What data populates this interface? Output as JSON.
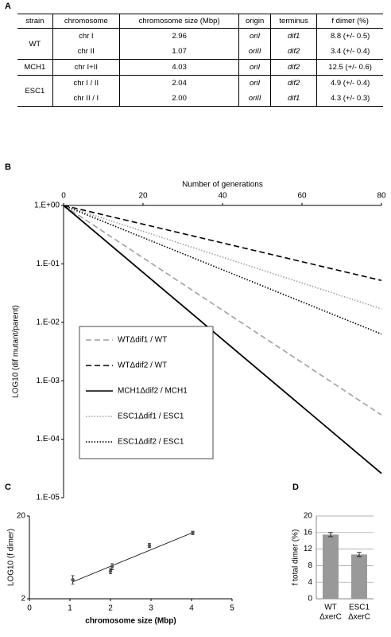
{
  "panels": [
    "A",
    "B",
    "C",
    "D"
  ],
  "table": {
    "header": [
      "strain",
      "chromosome",
      "chromosome size (Mbp)",
      "origin",
      "terminus",
      "f dimer (%)"
    ],
    "groups": [
      {
        "strain": "WT",
        "rows": [
          [
            "chr I",
            "2.96",
            "oriI",
            "dif1",
            "8.8 (+/- 0.5)"
          ],
          [
            "chr II",
            "1.07",
            "oriII",
            "dif2",
            "3.4 (+/- 0.4)"
          ]
        ]
      },
      {
        "strain": "MCH1",
        "rows": [
          [
            "chr I+II",
            "4.03",
            "oriI",
            "dif2",
            "12.5 (+/- 0.6)"
          ]
        ]
      },
      {
        "strain": "ESC1",
        "rows": [
          [
            "chr I / II",
            "2.04",
            "oriI",
            "dif2",
            "4.9 (+/- 0.4)"
          ],
          [
            "chr II / I",
            "2.00",
            "oriII",
            "dif1",
            "4.3 (+/- 0.3)"
          ]
        ]
      }
    ]
  },
  "chart_data": [
    {
      "type": "line",
      "xlabel": "Number of generations",
      "ylabel": "LOG10 (dif mutant/parent)",
      "x": [
        0,
        80
      ],
      "xlim": [
        0,
        80
      ],
      "xticks": [
        0,
        20,
        40,
        60,
        80
      ],
      "log_y": true,
      "ylim": [
        1e-05,
        1
      ],
      "yticks": [
        {
          "value": 1,
          "label": "1,E+00"
        },
        {
          "value": 0.1,
          "label": "1.E-01"
        },
        {
          "value": 0.01,
          "label": "1.E-02"
        },
        {
          "value": 0.001,
          "label": "1.E-03"
        },
        {
          "value": 0.0001,
          "label": "1.E-04"
        },
        {
          "value": 1e-05,
          "label": "1.E-05"
        }
      ],
      "legend": "lower left",
      "series": [
        {
          "name": "WTΔdif1 / WT",
          "color": "#a0a0a0",
          "dash": "dashed",
          "values": [
            1,
            0.00026
          ]
        },
        {
          "name": "WTΔdif2 / WT",
          "color": "#000000",
          "dash": "dashed",
          "values": [
            1,
            0.052
          ]
        },
        {
          "name": "MCH1Δdif2 / MCH1",
          "color": "#000000",
          "dash": "solid",
          "values": [
            1,
            2.6e-05
          ]
        },
        {
          "name": "ESC1Δdif1 / ESC1",
          "color": "#a0a0a0",
          "dash": "dotted",
          "values": [
            1,
            0.017
          ]
        },
        {
          "name": "ESC1Δdif2 / ESC1",
          "color": "#000000",
          "dash": "dotted",
          "values": [
            1,
            0.0063
          ]
        }
      ]
    },
    {
      "type": "scatter",
      "xlabel": "chromosome size (Mbp)",
      "ylabel": "LOG10 (f dimer)",
      "x": [
        1.07,
        2.0,
        2.04,
        2.96,
        4.03
      ],
      "values": [
        3.4,
        4.3,
        4.9,
        8.8,
        12.5
      ],
      "errors": [
        0.4,
        0.3,
        0.4,
        0.5,
        0.6
      ],
      "xlim": [
        0,
        5
      ],
      "xticks": [
        0,
        1,
        2,
        3,
        4,
        5
      ],
      "log_y": true,
      "ylim": [
        2,
        20
      ],
      "yticks": [
        2,
        20
      ],
      "color": "#555555",
      "trendline": {
        "x": [
          1.07,
          4.03
        ],
        "values": [
          3.2,
          12.6
        ]
      }
    },
    {
      "type": "bar",
      "ylabel": "f total dimer (%)",
      "categories": [
        [
          "WT",
          "ΔxerC"
        ],
        [
          "ESC1",
          "ΔxerC"
        ]
      ],
      "values": [
        15.5,
        10.7
      ],
      "errors": [
        0.5,
        0.5
      ],
      "ylim": [
        0,
        20
      ],
      "yticks": [
        0,
        4,
        8,
        12,
        16,
        20
      ],
      "grid": true,
      "color": "#999999"
    }
  ]
}
